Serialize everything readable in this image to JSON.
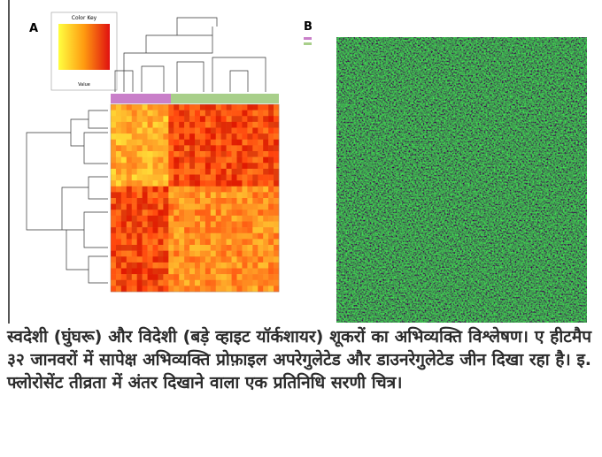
{
  "panel_a": {
    "label": "A",
    "color_key_title": "Color Key",
    "color_key_axis": "Value"
  },
  "panel_b": {
    "label": "B"
  },
  "caption": "स्वदेशी (घुंघरू) और विदेशी (बड़े व्हाइट यॉर्कशायर) शूकरों का अभिव्यक्ति विश्लेषण। ए हीटमैप ३२ जानवरों में सापेक्ष अभिव्यक्ति प्रोफ़ाइल अपरेगुलेटेड और डाउनरेगुलेटेड जीन दिखा रहा है। इ. फ्लोरोसेंट तीव्रता में अंतर दिखाने वाला एक प्रतिनिधि सरणी चित्र।"
}
